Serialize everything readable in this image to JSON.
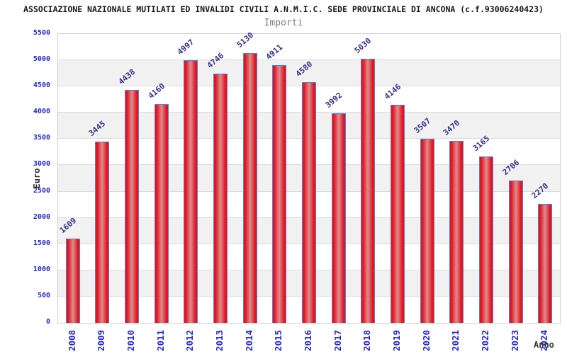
{
  "header": {
    "title": "ASSOCIAZIONE NAZIONALE MUTILATI ED INVALIDI CIVILI A.N.M.I.C. SEDE PROVINCIALE DI ANCONA (c.f.93006240423)",
    "subtitle": "Importi"
  },
  "chart_data": {
    "type": "bar",
    "title": "Importi",
    "xlabel": "Anno",
    "ylabel": "Euro",
    "categories": [
      "2008",
      "2009",
      "2010",
      "2011",
      "2012",
      "2013",
      "2014",
      "2015",
      "2016",
      "2017",
      "2018",
      "2019",
      "2020",
      "2021",
      "2022",
      "2023",
      "2024"
    ],
    "values": [
      1609,
      3445,
      4438,
      4160,
      4997,
      4746,
      5130,
      4911,
      4580,
      3992,
      5030,
      4146,
      3507,
      3470,
      3165,
      2706,
      2270
    ],
    "ylim": [
      0,
      5500
    ],
    "ytick_step": 500,
    "yticks": [
      0,
      500,
      1000,
      1500,
      2000,
      2500,
      3000,
      3500,
      4000,
      4500,
      5000,
      5500
    ],
    "grid": "alternating-horizontal-bands",
    "legend": "none",
    "value_label_rotation_deg": -40,
    "x_tick_rotation_deg": -90,
    "colors": {
      "bar_edge": "#e8121f",
      "bar_center": "#d98f8f",
      "bar_border": "#4c85d6",
      "axis_tick_label": "#2424dd",
      "value_label": "#33338e",
      "band_alt": "#f1f1f1",
      "band_main": "#ffffff",
      "grid_line": "#dcdcdc",
      "plot_border": "#cfcfcf",
      "title": "#1a1a1a",
      "subtitle": "#7f7f7f",
      "axis_title": "#333333"
    }
  }
}
